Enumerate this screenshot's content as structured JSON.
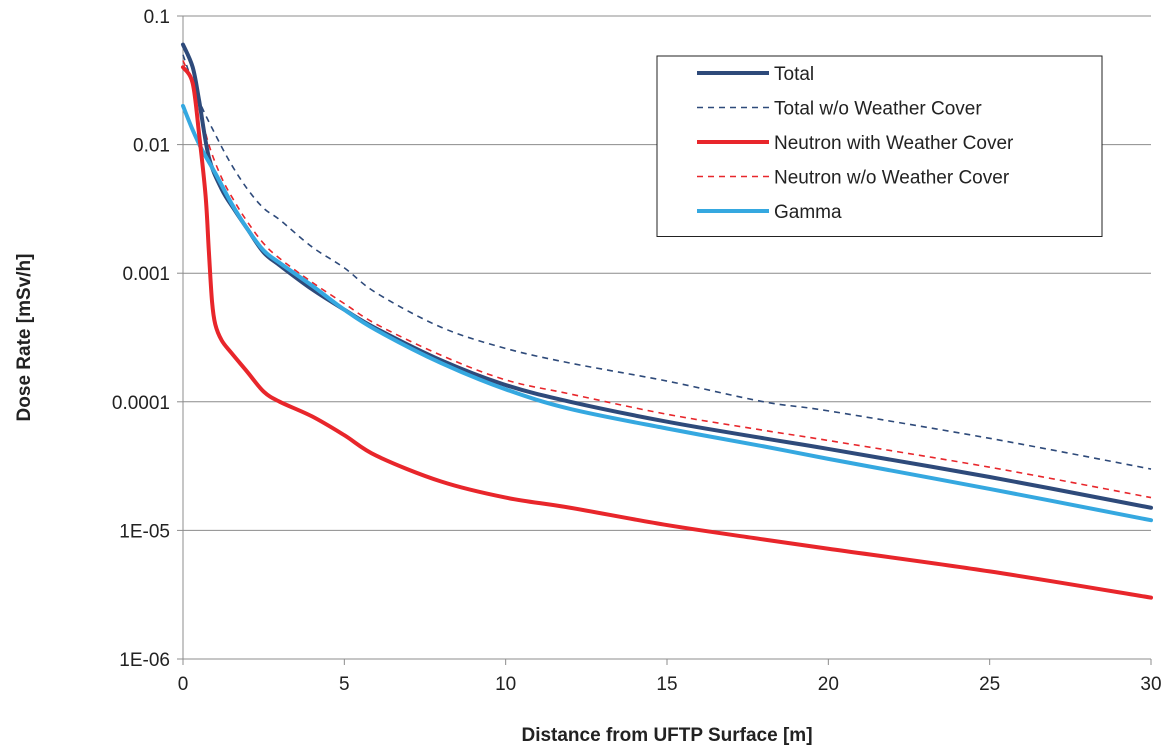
{
  "chart_data": {
    "type": "line",
    "xlabel": "Distance from UFTP Surface [m]",
    "ylabel": "Dose Rate [mSv/h]",
    "xlim": [
      0,
      30
    ],
    "ylim": [
      1e-06,
      0.1
    ],
    "yscale": "log",
    "grid": "horizontal",
    "legend_position": "top-right",
    "x_ticks": [
      "0",
      "5",
      "10",
      "15",
      "20",
      "25",
      "30"
    ],
    "y_ticks": [
      "0.1",
      "0.01",
      "0.001",
      "0.0001",
      "1E-05",
      "1E-06"
    ],
    "series": [
      {
        "name": "Total",
        "color": "#2e4a7a",
        "dash": "solid",
        "x": [
          0,
          0.3,
          0.5,
          0.8,
          1.2,
          1.6,
          2.0,
          2.5,
          3.0,
          4.0,
          5.0,
          6.0,
          8.0,
          10.0,
          12.0,
          15.0,
          18.0,
          20.0,
          25.0,
          30.0
        ],
        "y": [
          0.06,
          0.04,
          0.022,
          0.008,
          0.0045,
          0.0031,
          0.0022,
          0.00145,
          0.00115,
          0.00075,
          0.00052,
          0.00037,
          0.00021,
          0.000135,
          0.0001,
          7e-05,
          5.2e-05,
          4.3e-05,
          2.6e-05,
          1.5e-05
        ]
      },
      {
        "name": "Total w/o Weather Cover",
        "color": "#2e4a7a",
        "dash": "dashed",
        "x": [
          0,
          0.5,
          1.0,
          1.5,
          2.0,
          2.5,
          3.0,
          4.0,
          5.0,
          6.0,
          8.0,
          10.0,
          12.0,
          15.0,
          18.0,
          20.0,
          25.0,
          30.0
        ],
        "y": [
          0.05,
          0.022,
          0.012,
          0.007,
          0.0045,
          0.0032,
          0.0026,
          0.0016,
          0.0011,
          0.0007,
          0.00038,
          0.00026,
          0.0002,
          0.000145,
          0.0001,
          8.5e-05,
          5.2e-05,
          3e-05
        ]
      },
      {
        "name": "Neutron with Weather Cover",
        "color": "#e8262b",
        "dash": "solid",
        "x": [
          0,
          0.3,
          0.5,
          0.7,
          0.8,
          0.9,
          1.0,
          1.2,
          1.5,
          2.0,
          2.5,
          3.0,
          4.0,
          5.0,
          6.0,
          8.0,
          10.0,
          12.0,
          15.0,
          18.0,
          20.0,
          25.0,
          30.0
        ],
        "y": [
          0.04,
          0.03,
          0.012,
          0.004,
          0.0015,
          0.0006,
          0.0004,
          0.0003,
          0.00024,
          0.00017,
          0.00012,
          0.0001,
          7.7e-05,
          5.5e-05,
          3.8e-05,
          2.4e-05,
          1.8e-05,
          1.5e-05,
          1.1e-05,
          8.5e-06,
          7.2e-06,
          4.8e-06,
          3e-06
        ]
      },
      {
        "name": "Neutron w/o Weather Cover",
        "color": "#e8262b",
        "dash": "dashed",
        "x": [
          0,
          0.3,
          0.5,
          0.8,
          1.2,
          1.6,
          2.0,
          2.5,
          3.0,
          4.0,
          5.0,
          6.0,
          8.0,
          10.0,
          12.0,
          15.0,
          18.0,
          20.0,
          25.0,
          30.0
        ],
        "y": [
          0.045,
          0.03,
          0.02,
          0.01,
          0.0055,
          0.0036,
          0.0025,
          0.0017,
          0.0013,
          0.00085,
          0.00058,
          0.0004,
          0.00023,
          0.000148,
          0.000115,
          8e-05,
          6e-05,
          5e-05,
          3.1e-05,
          1.8e-05
        ]
      },
      {
        "name": "Gamma",
        "color": "#35a8e0",
        "dash": "solid",
        "x": [
          0,
          0.3,
          0.6,
          1.0,
          1.5,
          2.0,
          2.5,
          3.0,
          4.0,
          5.0,
          6.0,
          8.0,
          10.0,
          12.0,
          15.0,
          18.0,
          20.0,
          25.0,
          30.0
        ],
        "y": [
          0.02,
          0.013,
          0.009,
          0.006,
          0.0035,
          0.0022,
          0.0015,
          0.0012,
          0.0008,
          0.00052,
          0.00036,
          0.0002,
          0.000125,
          8.8e-05,
          6.2e-05,
          4.5e-05,
          3.6e-05,
          2.1e-05,
          1.2e-05
        ]
      }
    ]
  }
}
